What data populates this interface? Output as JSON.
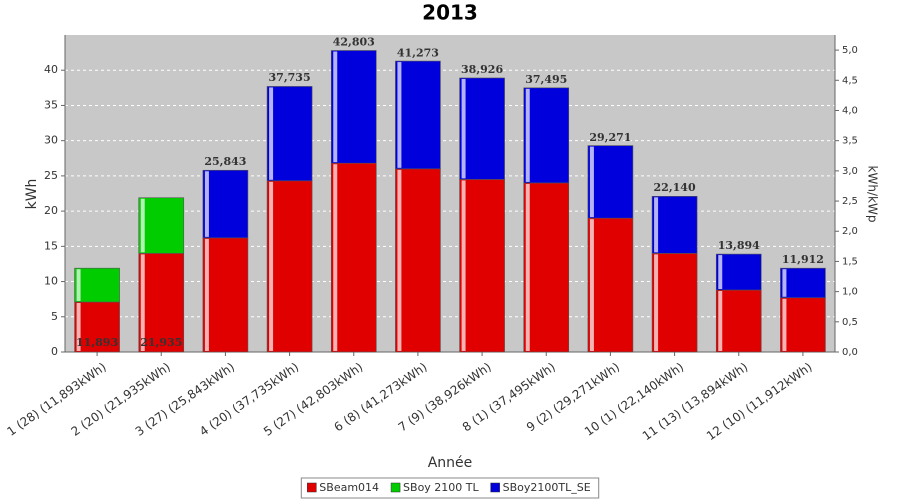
{
  "chart_data": {
    "type": "stacked_bar",
    "title": "2013",
    "x_label": "Année",
    "y_label": "kWh",
    "y2_label": "kWh/kWp",
    "categories": [
      "1 (28)  (11,893kWh)",
      "2 (20)  (21,935kWh)",
      "3 (27)  (25,843kWh)",
      "4 (20)  (37,735kWh)",
      "5 (27)  (42,803kWh)",
      "6 (8)  (41,273kWh)",
      "7 (9)  (38,926kWh)",
      "8 (1)  (37,495kWh)",
      "9 (2)  (29,271kWh)",
      "10 (1)  (22,140kWh)",
      "11 (13)  (13,894kWh)",
      "12 (10)  (11,912kWh)"
    ],
    "series": [
      {
        "name": "SBeam014",
        "color": "#e00000",
        "values": [
          7.1,
          14.0,
          16.2,
          24.3,
          26.8,
          26.0,
          24.5,
          24.0,
          19.0,
          14.0,
          8.8,
          7.7
        ]
      },
      {
        "name": "SBoy 2100 TL",
        "color": "#00cc00",
        "values": [
          4.8,
          7.9,
          null,
          null,
          null,
          null,
          null,
          null,
          null,
          null,
          null,
          null
        ]
      },
      {
        "name": "SBoy2100TL_SE",
        "color": "#0000dd",
        "values": [
          null,
          null,
          9.6,
          13.4,
          16.0,
          15.3,
          14.4,
          13.5,
          10.3,
          8.1,
          5.1,
          4.2
        ]
      }
    ],
    "totals": {
      "values": [
        11.893,
        21.935,
        25.843,
        37.735,
        42.803,
        41.273,
        38.926,
        37.495,
        29.271,
        22.14,
        13.894,
        11.912
      ],
      "value_labels": [
        "11,893",
        "21,935",
        "25,843",
        "37,735",
        "42,803",
        "41,273",
        "38,926",
        "37,495",
        "29,271",
        "22,140",
        "13,894",
        "11,912"
      ]
    },
    "ylim": [
      0,
      45
    ],
    "yticks": [
      0,
      5,
      10,
      15,
      20,
      25,
      30,
      35,
      40
    ],
    "y2lim": [
      0,
      5.25
    ],
    "y2ticks": [
      {
        "value": 0,
        "label": "0,0"
      },
      {
        "value": 0.5,
        "label": "0,5"
      },
      {
        "value": 1,
        "label": "1,0"
      },
      {
        "value": 1.5,
        "label": "1,5"
      },
      {
        "value": 2,
        "label": "2,0"
      },
      {
        "value": 2.5,
        "label": "2,5"
      },
      {
        "value": 3,
        "label": "3,0"
      },
      {
        "value": 3.5,
        "label": "3,5"
      },
      {
        "value": 4,
        "label": "4,0"
      },
      {
        "value": 4.5,
        "label": "4,5"
      },
      {
        "value": 5,
        "label": "5,0"
      }
    ],
    "grid": true,
    "legend": "bottom"
  }
}
